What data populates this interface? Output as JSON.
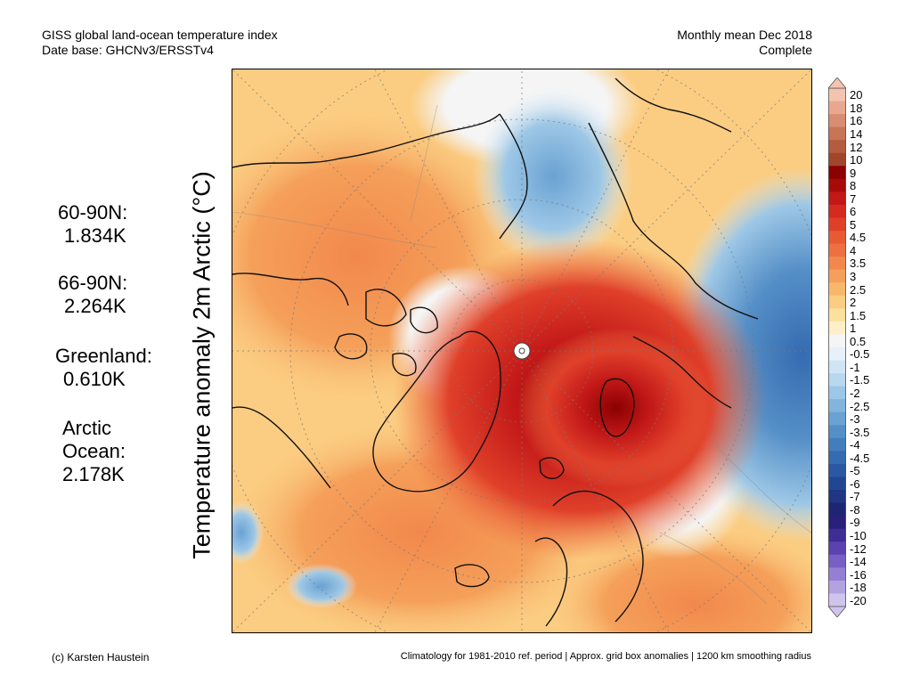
{
  "header": {
    "left_line1": "GISS global land-ocean temperature index",
    "left_line2": "Date base: GHCNv3/ERSSTv4",
    "right_line1": "Monthly mean Dec 2018",
    "right_line2": "Complete"
  },
  "axis_label": "Temperature anomaly 2m Arctic (°C)",
  "stats": [
    {
      "label": "60-90N:",
      "value": "1.834K"
    },
    {
      "label": "66-90N:",
      "value": "2.264K"
    },
    {
      "label": "Greenland:",
      "value": "0.610K"
    },
    {
      "label_line1": "Arctic",
      "label_line2": "Ocean:",
      "value": "2.178K"
    }
  ],
  "colorbar": {
    "labels": [
      "20",
      "18",
      "16",
      "14",
      "12",
      "10",
      "9",
      "8",
      "7",
      "6",
      "5",
      "4.5",
      "4",
      "3.5",
      "3",
      "2.5",
      "2",
      "1.5",
      "1",
      "0.5",
      "-0.5",
      "-1",
      "-1.5",
      "-2",
      "-2.5",
      "-3",
      "-3.5",
      "-4",
      "-4.5",
      "-5",
      "-6",
      "-7",
      "-8",
      "-9",
      "-10",
      "-12",
      "-14",
      "-16",
      "-18",
      "-20"
    ],
    "colors": [
      "#f4c4b0",
      "#e8a890",
      "#d88c72",
      "#c77457",
      "#b45c40",
      "#a0462c",
      "#8b0000",
      "#a80a0a",
      "#c21818",
      "#d42a20",
      "#e0402a",
      "#e85a34",
      "#ee7040",
      "#f2884c",
      "#f5a05a",
      "#f8b86c",
      "#fbcd82",
      "#fce09e",
      "#fdf0c8",
      "#f5f5f5",
      "#e6f1fa",
      "#d0e5f4",
      "#b8d8ee",
      "#9dc7e6",
      "#83b5dc",
      "#6aa2d2",
      "#558fc7",
      "#437dbc",
      "#356bb0",
      "#2a58a2",
      "#234693",
      "#1f3683",
      "#1e2673",
      "#2a1f7a",
      "#3f2c95",
      "#5a43b0",
      "#7660c4",
      "#9480d2",
      "#b2a2e0",
      "#d0c4ee"
    ]
  },
  "footer": {
    "left": "(c) Karsten Haustein",
    "right": "Climatology for 1981-2010 ref. period | Approx. grid box anomalies | 1200 km smoothing radius"
  }
}
